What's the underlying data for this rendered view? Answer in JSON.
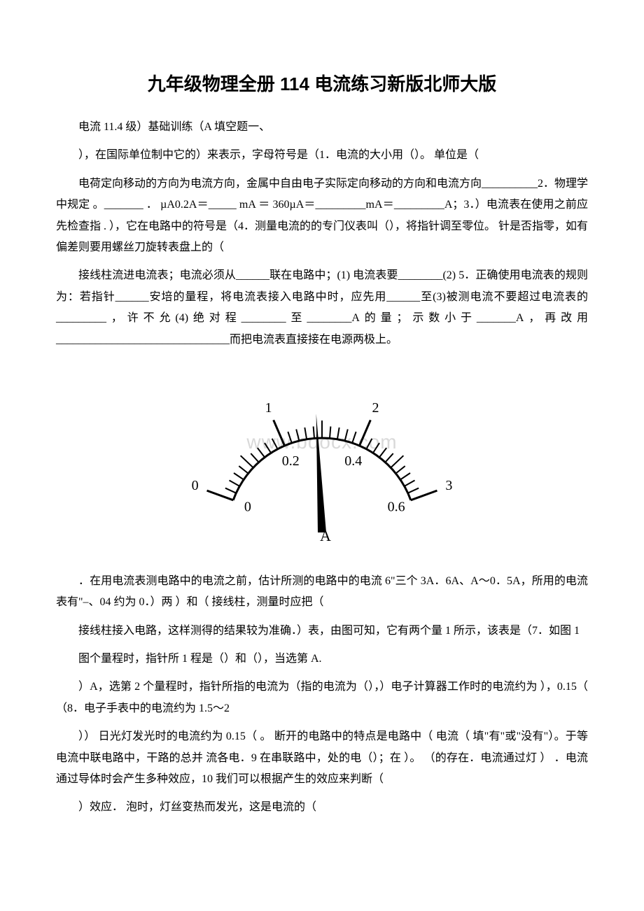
{
  "title": "九年级物理全册 114 电流练习新版北师大版",
  "paragraphs": {
    "p1": "电流 11.4 级）基础训练（A 填空题一、",
    "p2": "），在国际单位制中它的）来表示，字母符号是（1．电流的大小用（）。 单位是（",
    "p3": "电荷定向移动的方向为电流方向，金属中自由电子实际定向移动的方向和电流方向__________2．物理学中规定 。_______ ． µA0.2A＝_____ mA ＝ 360µA＝_________mA＝_________A；3．）电流表在使用之前应先检查指 . ），它在电路中的符号是（4．测量电流的的专门仪表叫（），将指针调至零位。 针是否指零，如有偏差则要用螺丝刀旋转表盘上的（",
    "p4": "接线柱流进电流表；电流必须从______联在电路中；(1) 电流表要________(2) 5．正确使用电流表的规则为：若指针______安培的量程，将电流表接入电路中时，应先用______至(3)被测电流不要超过电流表的_________，许不允(4)绝对程________至________A的量；示数小于_______A，再改用 _______________________________而把电流表直接接在电源两极上。",
    "p5": "．在用电流表测电路中的电流之前，估计所测的电路中的电流 6\"三个 3A．6A、A～0．5A，所用的电流表有\"–、04 约为 0．）两 ）和（ 接线柱，测量时应把（",
    "p6": "接线柱接入电路，这样测得的结果较为准确．）表，由图可知，它有两个量 1 所示，该表是（7．如图 1",
    "p7": "图个量程时，指针所 1 程是（）和（），当选第 A.",
    "p8": "）A，选第 2 个量程时，指针所指的电流为（指的电流为（），）电子计算器工作时的电流约为 ），0.15（ （8．电子手表中的电流约为 1.5～2",
    "p9": "）） 日光灯发光时的电流约为 0.15（ 。 断开的电路中的特点是电路中（ 电流（ 填\"有\"或\"没有\"）。于等电流中联电路中，干路的总并 流各电．9 在串联路中，处的电（）；在 ）。 （的存在．电流通过灯 ） ．电流通过导体时会产生多种效应，10 我们可以根据产生的效应来判断（",
    "p10": "）效应． 泡时，灯丝变热而发光，这是电流的（"
  },
  "ammeter": {
    "upper_ticks": [
      "0",
      "1",
      "2",
      "3"
    ],
    "lower_ticks": [
      "0",
      "0.2",
      "0.4",
      "0.6"
    ],
    "needle_label": "A",
    "watermark": "www.bdocx.com",
    "colors": {
      "stroke": "#000000",
      "watermark": "#d9d9d9"
    },
    "font_sizes": {
      "ticks": 20,
      "needle_label": 22,
      "watermark": 28
    }
  }
}
